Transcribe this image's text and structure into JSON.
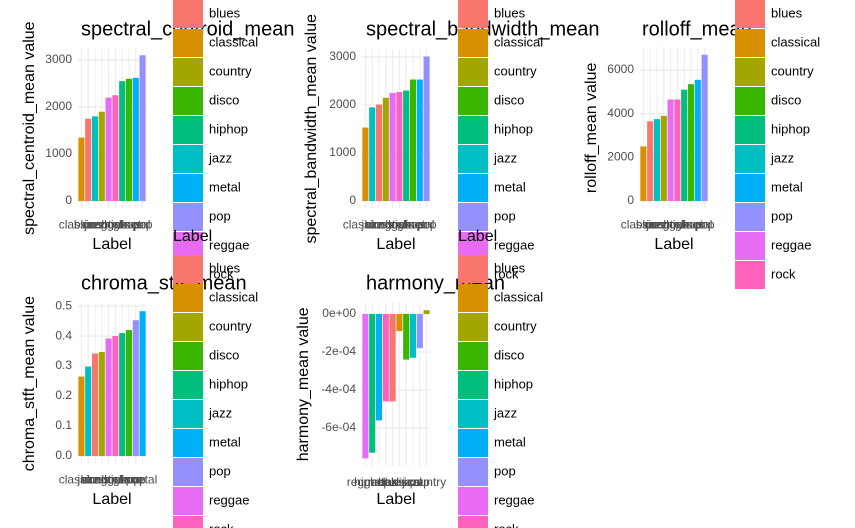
{
  "legend": {
    "title": "Label",
    "items": [
      {
        "name": "blues",
        "color": "#F8766D"
      },
      {
        "name": "classical",
        "color": "#D89000"
      },
      {
        "name": "country",
        "color": "#A3A500"
      },
      {
        "name": "disco",
        "color": "#39B600"
      },
      {
        "name": "hiphop",
        "color": "#00BF7D"
      },
      {
        "name": "jazz",
        "color": "#00BFC4"
      },
      {
        "name": "metal",
        "color": "#00B0F6"
      },
      {
        "name": "pop",
        "color": "#9590FF"
      },
      {
        "name": "reggae",
        "color": "#E76BF3"
      },
      {
        "name": "rock",
        "color": "#FF62BC"
      }
    ]
  },
  "chart_data": [
    {
      "type": "bar",
      "title": "spectral_centroid_mean",
      "x_label": "Label",
      "y_label": "spectral_centroid_mean value",
      "categories": [
        "classical",
        "blues",
        "jazz",
        "country",
        "reggae",
        "rock",
        "hiphop",
        "disco",
        "metal",
        "pop"
      ],
      "values": [
        1350,
        1750,
        1800,
        1900,
        2200,
        2250,
        2550,
        2600,
        2620,
        3100
      ],
      "ylim": [
        -155,
        3255
      ],
      "yticks": [
        0,
        1000,
        2000,
        3000
      ],
      "grid": true
    },
    {
      "type": "bar",
      "title": "spectral_bandwidth_mean",
      "x_label": "Label",
      "y_label": "spectral_bandwidth_mean value",
      "categories": [
        "classical",
        "jazz",
        "blues",
        "country",
        "reggae",
        "rock",
        "hiphop",
        "disco",
        "metal",
        "pop"
      ],
      "values": [
        1530,
        1950,
        2010,
        2150,
        2250,
        2270,
        2300,
        2530,
        2530,
        3010
      ],
      "ylim": [
        -150,
        3160
      ],
      "yticks": [
        0,
        1000,
        2000,
        3000
      ],
      "grid": true
    },
    {
      "type": "bar",
      "title": "rolloff_mean",
      "x_label": "Label",
      "y_label": "rolloff_mean value",
      "categories": [
        "classical",
        "blues",
        "jazz",
        "country",
        "reggae",
        "rock",
        "hiphop",
        "disco",
        "metal",
        "pop"
      ],
      "values": [
        2500,
        3650,
        3750,
        3900,
        4650,
        4650,
        5100,
        5350,
        5550,
        6700
      ],
      "ylim": [
        -335,
        7035
      ],
      "yticks": [
        0,
        2000,
        4000,
        6000
      ],
      "grid": true
    },
    {
      "type": "bar",
      "title": "chroma_stft_mean",
      "x_label": "Label",
      "y_label": "chroma_stft_mean value",
      "categories": [
        "classical",
        "jazz",
        "blues",
        "country",
        "reggae",
        "rock",
        "hiphop",
        "disco",
        "pop",
        "metal"
      ],
      "values": [
        0.265,
        0.298,
        0.342,
        0.347,
        0.392,
        0.4,
        0.41,
        0.42,
        0.453,
        0.483
      ],
      "ylim": [
        -0.024,
        0.507
      ],
      "yticks": [
        {
          "value": 0,
          "label": "0.0"
        },
        0.1,
        0.2,
        0.3,
        0.4,
        0.5
      ],
      "grid": true
    },
    {
      "type": "bar",
      "title": "harmony_mean",
      "x_label": "Label",
      "y_label": "harmony_mean value",
      "categories": [
        "reggae",
        "hiphop",
        "metal",
        "rock",
        "blues",
        "classical",
        "disco",
        "jazz",
        "pop",
        "country"
      ],
      "values": [
        -0.00076,
        -0.00073,
        -0.00056,
        -0.00046,
        -0.00046,
        -9e-05,
        -0.00024,
        -0.00023,
        -0.00018,
        2e-05
      ],
      "ylim": [
        -0.0008,
        6e-05
      ],
      "yticks": [
        {
          "value": 0,
          "label": "0e+00"
        },
        {
          "value": -0.0002,
          "label": "-2e-04"
        },
        {
          "value": -0.0004,
          "label": "-4e-04"
        },
        {
          "value": -0.0006,
          "label": "-6e-04"
        }
      ],
      "grid": true
    }
  ]
}
